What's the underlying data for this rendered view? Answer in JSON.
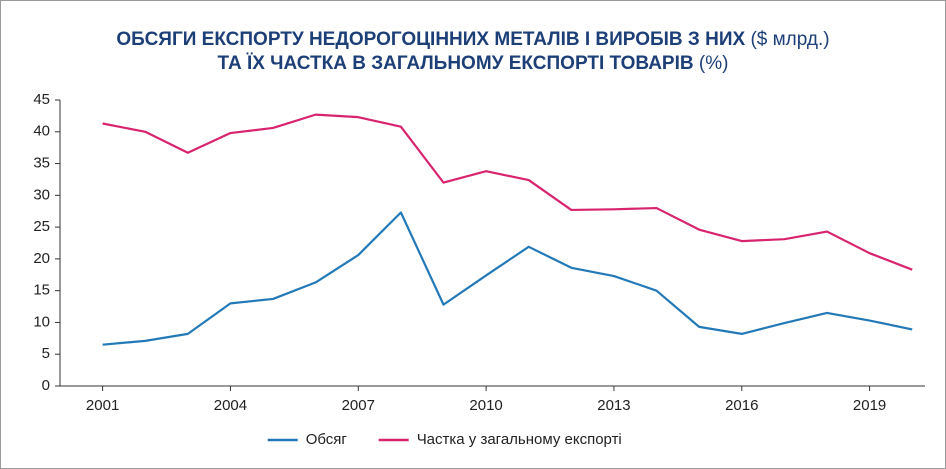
{
  "chart_data": {
    "type": "line",
    "title": [
      {
        "text": "ОБСЯГИ ЕКСПОРТУ НЕДОРОГОЦІННИХ МЕТАЛІВ І ВИРОБІВ З НИХ",
        "unit": "($ млрд.)"
      },
      {
        "text": "ТА ЇХ ЧАСТКА В ЗАГАЛЬНОМУ ЕКСПОРТІ ТОВАРІВ",
        "unit": "(%)"
      }
    ],
    "x": [
      2001,
      2002,
      2003,
      2004,
      2005,
      2006,
      2007,
      2008,
      2009,
      2010,
      2011,
      2012,
      2013,
      2014,
      2015,
      2016,
      2017,
      2018,
      2019,
      2020
    ],
    "series": [
      {
        "name": "Обсяг",
        "color": "#2379b8",
        "values": [
          6.5,
          7.1,
          8.2,
          13.0,
          13.7,
          16.3,
          20.6,
          27.3,
          12.8,
          17.4,
          21.9,
          18.6,
          17.3,
          15.0,
          9.3,
          8.2,
          9.9,
          11.5,
          10.3,
          8.9
        ]
      },
      {
        "name": "Частка у загальному експорті",
        "color": "#d8246f",
        "values": [
          41.3,
          40.0,
          36.7,
          39.8,
          40.6,
          42.7,
          42.3,
          40.8,
          32.0,
          33.8,
          32.4,
          27.7,
          27.8,
          28.0,
          24.6,
          22.8,
          23.1,
          24.3,
          20.9,
          18.3
        ]
      }
    ],
    "xlim": [
      2000,
      2020.3
    ],
    "xticks": [
      2001,
      2004,
      2007,
      2010,
      2013,
      2016,
      2019
    ],
    "ylim": [
      0,
      45
    ],
    "yticks": [
      0,
      5,
      10,
      15,
      20,
      25,
      30,
      35,
      40,
      45
    ],
    "legend": "bottom"
  }
}
